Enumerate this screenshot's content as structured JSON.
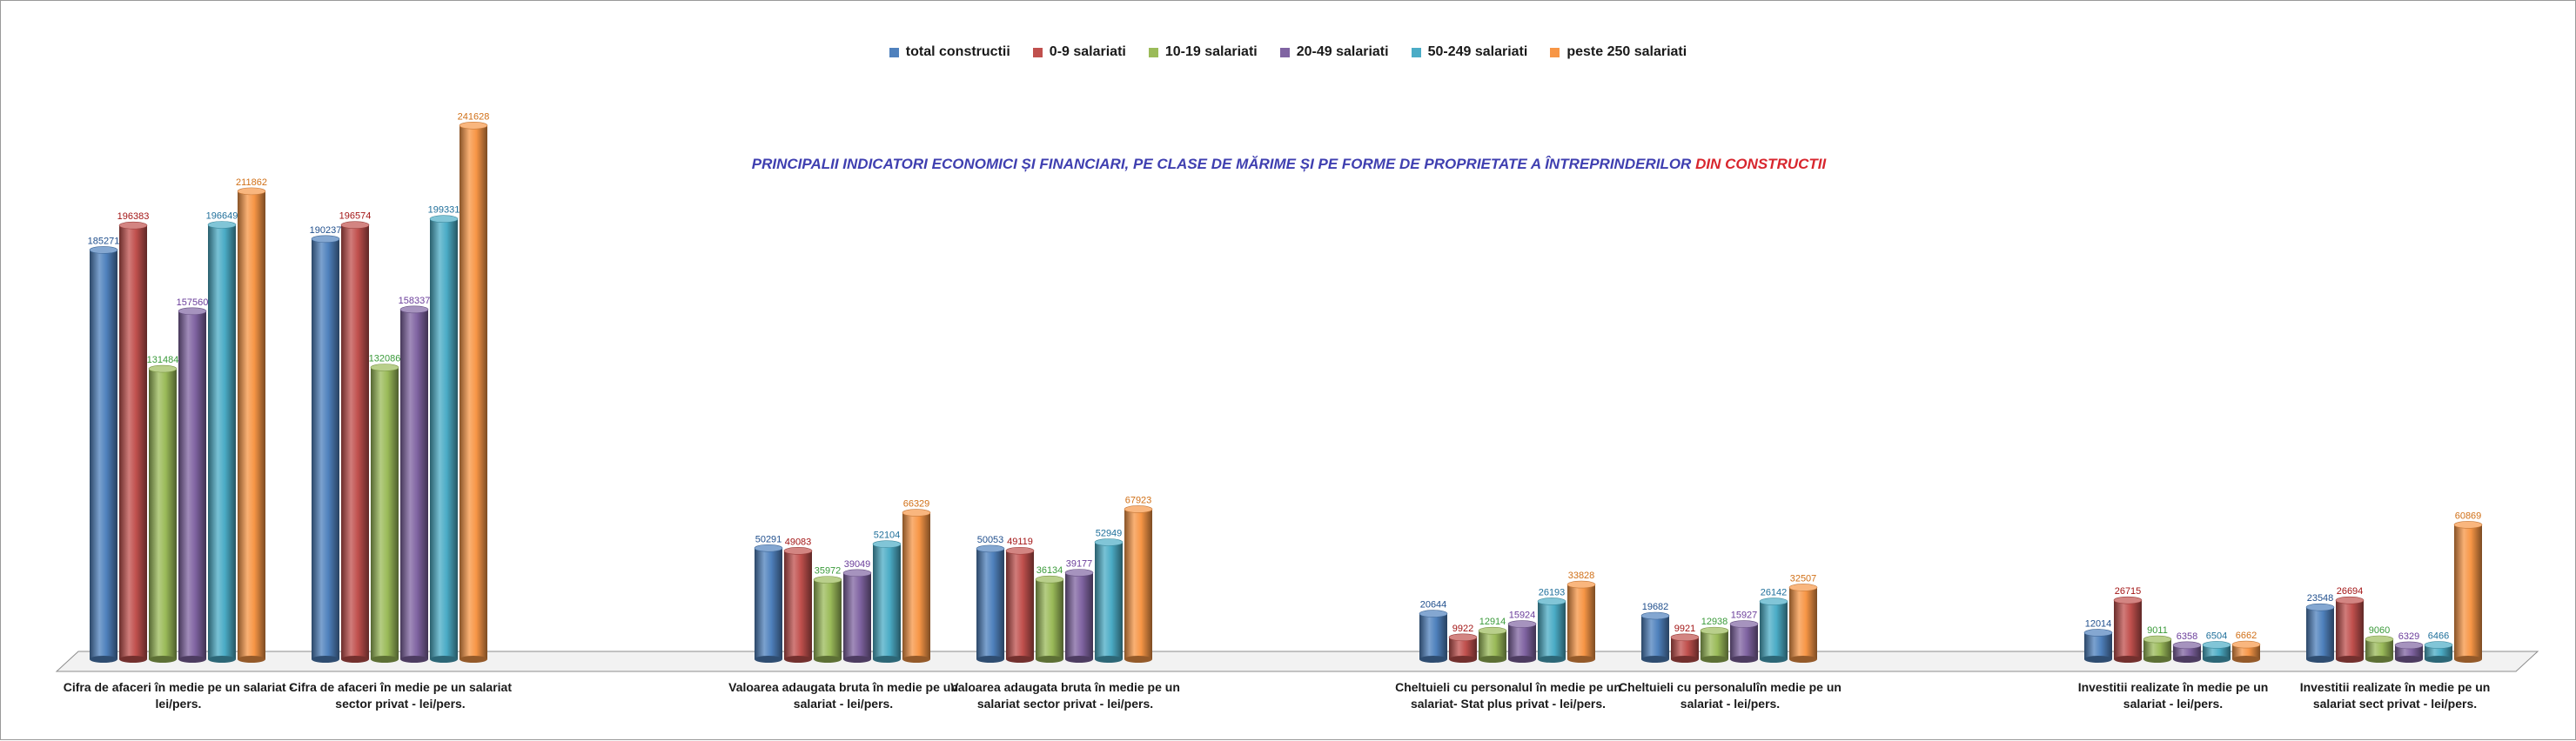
{
  "chart_data": {
    "type": "bar",
    "title_main": "PRINCIPALII INDICATORI ECONOMICI ȘI FINANCIARI, PE CLASE DE MĂRIME ȘI PE FORME DE PROPRIETATE A ÎNTREPRINDERILOR",
    "title_accent": "DIN CONSTRUCTII",
    "xlabel": "",
    "ylabel": "",
    "ylim": [
      0,
      250000
    ],
    "legend_position": "top-center",
    "categories": [
      "Cifra de afaceri în medie pe un salariat - lei/pers.",
      "Cifra de afaceri în medie pe un salariat sector privat - lei/pers.",
      "Valoarea adaugata bruta în medie pe un salariat - lei/pers.",
      "Valoarea adaugata bruta în medie pe un salariat sector privat - lei/pers.",
      "Cheltuieli cu personalul în medie pe un salariat- Stat plus privat - lei/pers.",
      "Cheltuieli cu personalulîn medie pe un salariat - lei/pers.",
      "Investitii realizate în medie pe un salariat - lei/pers.",
      "Investitii realizate în medie pe un salariat sect privat - lei/pers."
    ],
    "series": [
      {
        "name": "total constructii",
        "color": "#4f81bd",
        "values": [
          185271,
          190237,
          50291,
          50053,
          20644,
          19682,
          12014,
          23548
        ]
      },
      {
        "name": "0-9 salariati",
        "color": "#c0504d",
        "values": [
          196383,
          196574,
          49083,
          49119,
          9922,
          9921,
          26715,
          26694
        ]
      },
      {
        "name": "10-19 salariati",
        "color": "#9bbb59",
        "values": [
          131484,
          132086,
          35972,
          36134,
          12914,
          12938,
          9011,
          9060
        ]
      },
      {
        "name": "20-49 salariati",
        "color": "#8064a2",
        "values": [
          157560,
          158337,
          39049,
          39177,
          15924,
          15927,
          6358,
          6329
        ]
      },
      {
        "name": "50-249 salariati",
        "color": "#4bacc6",
        "values": [
          196649,
          199331,
          52104,
          52949,
          26193,
          26142,
          6504,
          6466
        ]
      },
      {
        "name": "peste 250 salariati",
        "color": "#f79646",
        "values": [
          211862,
          241628,
          66329,
          67923,
          33828,
          32507,
          6662,
          60869
        ]
      }
    ]
  }
}
